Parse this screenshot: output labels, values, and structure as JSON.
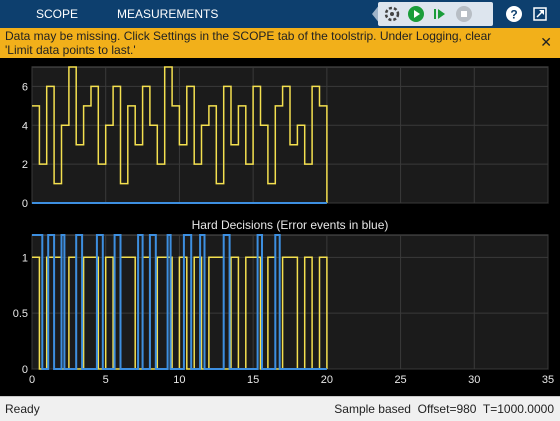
{
  "toolbar": {
    "tabs": [
      {
        "label": "SCOPE"
      },
      {
        "label": "MEASUREMENTS"
      }
    ],
    "quick_access": [
      "chevron-left",
      "settings-gear",
      "run",
      "step-forward",
      "stop",
      "help",
      "undock"
    ]
  },
  "banner": {
    "message": "Data may be missing. Click Settings in the SCOPE tab of the toolstrip. Under Logging, clear 'Limit data points to last.'",
    "close_label": "✕"
  },
  "plots": [
    {
      "title": "",
      "ylim": [
        0,
        7
      ],
      "yticks": [
        "0",
        "2",
        "4",
        "6"
      ]
    },
    {
      "title": "Hard Decisions  (Error events in blue)",
      "ylim": [
        0,
        1.2
      ],
      "yticks": [
        "0",
        "0.5",
        "1"
      ]
    }
  ],
  "x_axis": {
    "xlim": [
      0,
      35
    ],
    "xticks": [
      "0",
      "5",
      "10",
      "15",
      "20",
      "25",
      "30",
      "35"
    ]
  },
  "colors": {
    "signal": "#f4e04f",
    "errors": "#3d8fe0",
    "axes_bg": "#1b1b1b",
    "grid": "#3a3a3a"
  },
  "status": {
    "left": "Ready",
    "right": "Sample based  Offset=980  T=1000.0000"
  },
  "chart_data": [
    {
      "type": "line",
      "title": "",
      "xlim": [
        0,
        35
      ],
      "ylim": [
        0,
        7
      ],
      "grid": true,
      "series": [
        {
          "x": [
            0.0,
            0.5,
            1.0,
            1.5,
            2.0,
            2.5,
            3.0,
            3.5,
            4.0,
            4.5,
            5.0,
            5.5,
            6.0,
            6.5,
            7.0,
            7.5,
            8.0,
            8.5,
            9.0,
            9.5,
            10.0,
            10.5,
            11.0,
            11.5,
            12.0,
            12.5,
            13.0,
            13.5,
            14.0,
            14.5,
            15.0,
            15.5,
            16.0,
            16.5,
            17.0,
            17.5,
            18.0,
            18.5,
            19.0,
            19.5,
            20.0
          ],
          "y": [
            5,
            2,
            6,
            1,
            4,
            7,
            3,
            5,
            6,
            2,
            4,
            6,
            1,
            5,
            3,
            6,
            4,
            2,
            7,
            5,
            3,
            6,
            2,
            4,
            5,
            1,
            6,
            3,
            5,
            2,
            6,
            4,
            1,
            5,
            6,
            3,
            4,
            2,
            6,
            5,
            0
          ]
        },
        {
          "x": [
            0,
            20
          ],
          "y": [
            0,
            0
          ]
        }
      ]
    },
    {
      "type": "line",
      "title": "Hard Decisions  (Error events in blue)",
      "xlim": [
        0,
        35
      ],
      "ylim": [
        0,
        1.2
      ],
      "grid": true,
      "series": [
        {
          "x": [
            0.0,
            0.5,
            1.0,
            1.5,
            2.0,
            2.5,
            3.0,
            3.5,
            4.0,
            4.5,
            5.0,
            5.5,
            6.0,
            6.5,
            7.0,
            7.5,
            8.0,
            8.5,
            9.0,
            9.5,
            10.0,
            10.5,
            11.0,
            11.5,
            12.0,
            12.5,
            13.0,
            13.5,
            14.0,
            14.5,
            15.0,
            15.5,
            16.0,
            16.5,
            17.0,
            17.5,
            18.0,
            18.5,
            19.0,
            19.5,
            20.0
          ],
          "y": [
            1,
            0,
            1,
            1,
            0,
            1,
            0,
            1,
            1,
            0,
            1,
            0,
            1,
            1,
            0,
            1,
            0,
            1,
            1,
            0,
            1,
            0,
            1,
            0,
            1,
            1,
            0,
            1,
            0,
            1,
            1,
            0,
            1,
            0,
            1,
            1,
            0,
            1,
            0,
            1,
            0
          ]
        },
        {
          "x": [
            0.0,
            0.7,
            1.1,
            1.5,
            2.0,
            2.2,
            3.0,
            3.4,
            4.4,
            4.8,
            5.6,
            6.0,
            7.2,
            7.5,
            8.0,
            8.4,
            9.2,
            9.4,
            10.3,
            10.8,
            11.4,
            11.7,
            13.0,
            13.4,
            15.3,
            15.6,
            16.5,
            16.8,
            20.0
          ],
          "y": [
            1.2,
            0,
            1.2,
            0,
            1.2,
            0,
            1.2,
            0,
            1.2,
            0,
            1.2,
            0,
            1.2,
            0,
            1.2,
            0,
            1.2,
            0,
            1.2,
            0,
            1.2,
            0,
            1.2,
            0,
            1.2,
            0,
            1.2,
            0,
            0
          ]
        }
      ]
    }
  ]
}
